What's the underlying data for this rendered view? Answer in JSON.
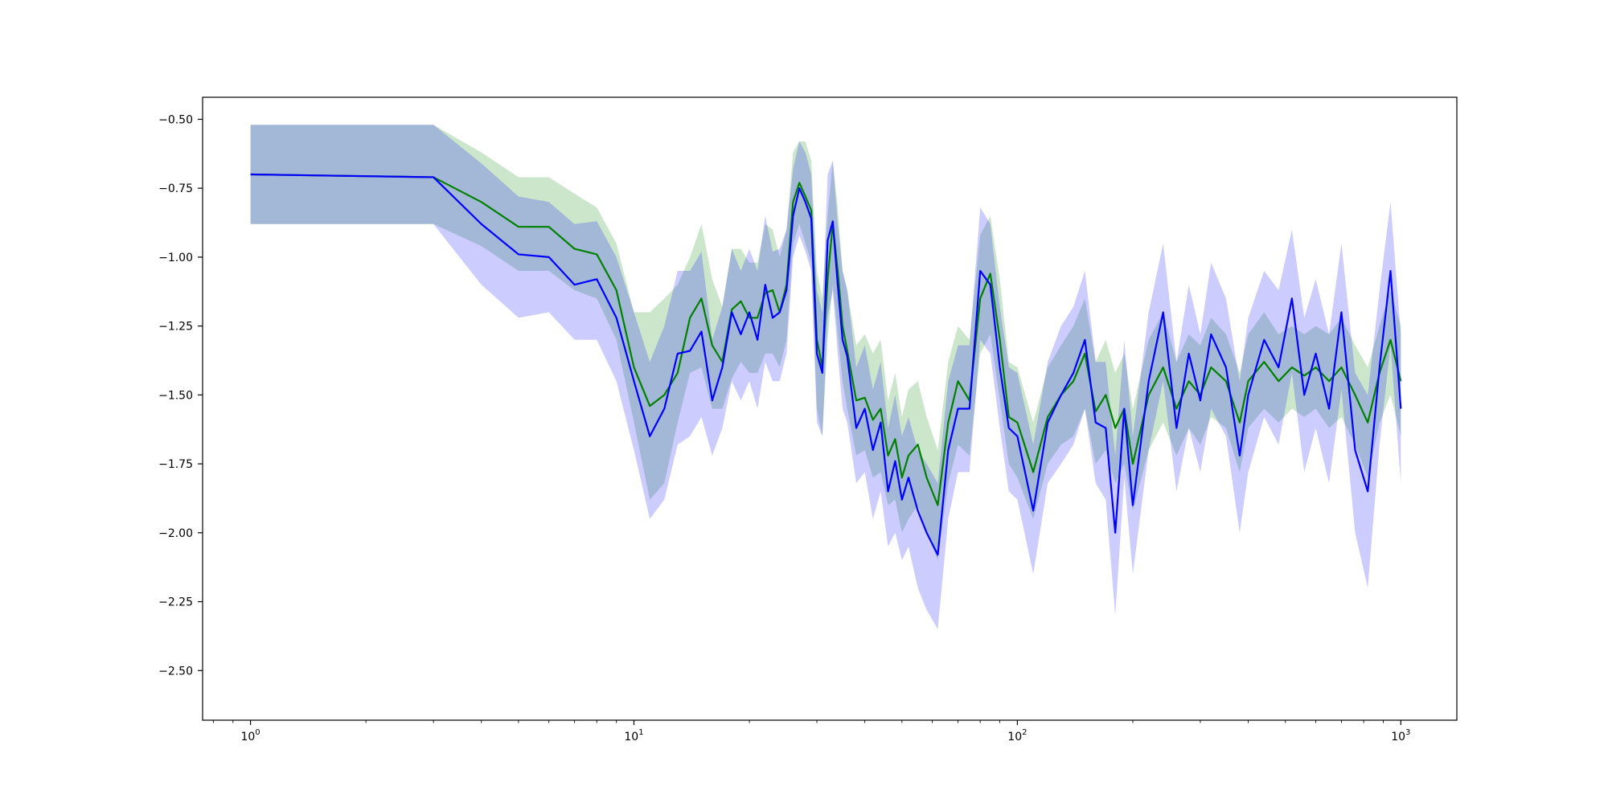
{
  "chart_data": {
    "type": "line",
    "xscale": "log",
    "xlim": [
      0.75,
      1400
    ],
    "ylim": [
      -2.68,
      -0.42
    ],
    "grid": false,
    "legend": "none",
    "xticks": [
      {
        "value": 1,
        "base": "10",
        "exp": "0"
      },
      {
        "value": 10,
        "base": "10",
        "exp": "1"
      },
      {
        "value": 100,
        "base": "10",
        "exp": "2"
      },
      {
        "value": 1000,
        "base": "10",
        "exp": "3"
      }
    ],
    "yticks": [
      {
        "value": -0.5,
        "label": "−0.50"
      },
      {
        "value": -0.75,
        "label": "−0.75"
      },
      {
        "value": -1.0,
        "label": "−1.00"
      },
      {
        "value": -1.25,
        "label": "−1.25"
      },
      {
        "value": -1.5,
        "label": "−1.50"
      },
      {
        "value": -1.75,
        "label": "−1.75"
      },
      {
        "value": -2.0,
        "label": "−2.00"
      },
      {
        "value": -2.25,
        "label": "−2.25"
      },
      {
        "value": -2.5,
        "label": "−2.50"
      }
    ],
    "series": [
      {
        "color": "#008000",
        "band_color": "#008000",
        "band_opacity": 0.2,
        "x": [
          1,
          3,
          4,
          5,
          6,
          7,
          8,
          9,
          10,
          11,
          12,
          13,
          14,
          15,
          16,
          17,
          18,
          19,
          20,
          21,
          22,
          23,
          24,
          25,
          26,
          27,
          28,
          29,
          30,
          31,
          32,
          33,
          34,
          35,
          36,
          38,
          40,
          42,
          44,
          46,
          48,
          50,
          52,
          55,
          58,
          62,
          66,
          70,
          75,
          80,
          85,
          90,
          95,
          100,
          110,
          120,
          130,
          140,
          150,
          160,
          170,
          180,
          190,
          200,
          220,
          240,
          260,
          280,
          300,
          320,
          350,
          380,
          400,
          440,
          480,
          520,
          560,
          600,
          650,
          700,
          760,
          820,
          880,
          940,
          1000
        ],
        "y": [
          -0.7,
          -0.71,
          -0.8,
          -0.89,
          -0.89,
          -0.97,
          -0.99,
          -1.12,
          -1.4,
          -1.54,
          -1.5,
          -1.42,
          -1.22,
          -1.15,
          -1.32,
          -1.38,
          -1.19,
          -1.16,
          -1.22,
          -1.22,
          -1.13,
          -1.12,
          -1.2,
          -1.1,
          -0.8,
          -0.73,
          -0.78,
          -0.83,
          -1.3,
          -1.4,
          -1.08,
          -0.88,
          -1.05,
          -1.25,
          -1.34,
          -1.52,
          -1.51,
          -1.59,
          -1.55,
          -1.72,
          -1.66,
          -1.8,
          -1.72,
          -1.68,
          -1.8,
          -1.9,
          -1.6,
          -1.45,
          -1.52,
          -1.15,
          -1.06,
          -1.3,
          -1.58,
          -1.6,
          -1.78,
          -1.58,
          -1.5,
          -1.45,
          -1.35,
          -1.56,
          -1.5,
          -1.62,
          -1.55,
          -1.75,
          -1.5,
          -1.4,
          -1.55,
          -1.45,
          -1.5,
          -1.4,
          -1.45,
          -1.6,
          -1.45,
          -1.38,
          -1.45,
          -1.4,
          -1.43,
          -1.4,
          -1.45,
          -1.4,
          -1.5,
          -1.6,
          -1.42,
          -1.3,
          -1.45
        ],
        "lower": [
          -0.88,
          -0.88,
          -0.96,
          -1.05,
          -1.05,
          -1.12,
          -1.15,
          -1.3,
          -1.6,
          -1.88,
          -1.82,
          -1.6,
          -1.42,
          -1.4,
          -1.55,
          -1.55,
          -1.44,
          -1.38,
          -1.42,
          -1.42,
          -1.35,
          -1.35,
          -1.4,
          -1.3,
          -0.95,
          -0.88,
          -0.95,
          -1.02,
          -1.55,
          -1.65,
          -1.3,
          -1.1,
          -1.28,
          -1.45,
          -1.55,
          -1.72,
          -1.7,
          -1.8,
          -1.78,
          -1.9,
          -1.88,
          -2.0,
          -1.95,
          -1.9,
          -2.0,
          -2.1,
          -1.82,
          -1.68,
          -1.72,
          -1.35,
          -1.28,
          -1.52,
          -1.75,
          -1.8,
          -1.95,
          -1.75,
          -1.68,
          -1.65,
          -1.55,
          -1.75,
          -1.7,
          -1.82,
          -1.75,
          -1.92,
          -1.7,
          -1.6,
          -1.72,
          -1.62,
          -1.68,
          -1.58,
          -1.62,
          -1.78,
          -1.62,
          -1.55,
          -1.6,
          -1.55,
          -1.58,
          -1.55,
          -1.62,
          -1.58,
          -1.68,
          -1.8,
          -1.6,
          -1.5,
          -1.65
        ],
        "upper": [
          -0.52,
          -0.52,
          -0.62,
          -0.71,
          -0.71,
          -0.77,
          -0.82,
          -0.95,
          -1.2,
          -1.2,
          -1.15,
          -1.1,
          -1.0,
          -0.88,
          -1.08,
          -1.18,
          -0.97,
          -0.97,
          -1.02,
          -1.02,
          -0.88,
          -0.9,
          -1.0,
          -0.9,
          -0.62,
          -0.58,
          -0.58,
          -0.65,
          -1.05,
          -1.15,
          -0.85,
          -0.65,
          -0.82,
          -1.05,
          -1.12,
          -1.32,
          -1.28,
          -1.35,
          -1.3,
          -1.52,
          -1.42,
          -1.58,
          -1.48,
          -1.45,
          -1.58,
          -1.7,
          -1.38,
          -1.25,
          -1.3,
          -0.92,
          -0.85,
          -1.08,
          -1.38,
          -1.4,
          -1.6,
          -1.4,
          -1.32,
          -1.25,
          -1.15,
          -1.38,
          -1.3,
          -1.42,
          -1.35,
          -1.55,
          -1.3,
          -1.2,
          -1.38,
          -1.28,
          -1.32,
          -1.22,
          -1.28,
          -1.42,
          -1.28,
          -1.2,
          -1.28,
          -1.25,
          -1.28,
          -1.25,
          -1.28,
          -1.22,
          -1.32,
          -1.4,
          -1.25,
          -1.12,
          -1.25
        ]
      },
      {
        "color": "#0000ff",
        "band_color": "#0000ff",
        "band_opacity": 0.2,
        "x": [
          1,
          3,
          4,
          5,
          6,
          7,
          8,
          9,
          10,
          11,
          12,
          13,
          14,
          15,
          16,
          17,
          18,
          19,
          20,
          21,
          22,
          23,
          24,
          25,
          26,
          27,
          28,
          29,
          30,
          31,
          32,
          33,
          34,
          35,
          36,
          38,
          40,
          42,
          44,
          46,
          48,
          50,
          52,
          55,
          58,
          62,
          66,
          70,
          75,
          80,
          85,
          90,
          95,
          100,
          110,
          120,
          130,
          140,
          150,
          160,
          170,
          180,
          190,
          200,
          220,
          240,
          260,
          280,
          300,
          320,
          350,
          380,
          400,
          440,
          480,
          520,
          560,
          600,
          650,
          700,
          760,
          820,
          880,
          940,
          1000
        ],
        "y": [
          -0.7,
          -0.71,
          -0.88,
          -0.99,
          -1.0,
          -1.1,
          -1.08,
          -1.22,
          -1.45,
          -1.65,
          -1.55,
          -1.35,
          -1.34,
          -1.27,
          -1.52,
          -1.4,
          -1.2,
          -1.28,
          -1.2,
          -1.3,
          -1.1,
          -1.22,
          -1.2,
          -1.12,
          -0.85,
          -0.75,
          -0.8,
          -0.86,
          -1.35,
          -1.42,
          -0.94,
          -0.87,
          -1.1,
          -1.3,
          -1.36,
          -1.62,
          -1.55,
          -1.7,
          -1.6,
          -1.85,
          -1.74,
          -1.88,
          -1.8,
          -1.92,
          -2.0,
          -2.08,
          -1.7,
          -1.55,
          -1.55,
          -1.05,
          -1.1,
          -1.4,
          -1.62,
          -1.65,
          -1.92,
          -1.6,
          -1.5,
          -1.42,
          -1.3,
          -1.6,
          -1.62,
          -2.0,
          -1.55,
          -1.9,
          -1.45,
          -1.2,
          -1.62,
          -1.35,
          -1.52,
          -1.28,
          -1.4,
          -1.72,
          -1.5,
          -1.3,
          -1.4,
          -1.15,
          -1.5,
          -1.35,
          -1.55,
          -1.2,
          -1.7,
          -1.85,
          -1.4,
          -1.05,
          -1.55
        ],
        "lower": [
          -0.88,
          -0.88,
          -1.1,
          -1.22,
          -1.2,
          -1.3,
          -1.3,
          -1.45,
          -1.7,
          -1.95,
          -1.88,
          -1.68,
          -1.65,
          -1.58,
          -1.72,
          -1.62,
          -1.45,
          -1.52,
          -1.45,
          -1.55,
          -1.38,
          -1.45,
          -1.45,
          -1.35,
          -1.0,
          -0.92,
          -0.98,
          -1.05,
          -1.6,
          -1.65,
          -1.22,
          -1.12,
          -1.35,
          -1.55,
          -1.6,
          -1.82,
          -1.78,
          -1.95,
          -1.85,
          -2.05,
          -2.0,
          -2.1,
          -2.05,
          -2.2,
          -2.28,
          -2.35,
          -1.95,
          -1.78,
          -1.78,
          -1.3,
          -1.35,
          -1.62,
          -1.85,
          -1.88,
          -2.15,
          -1.82,
          -1.75,
          -1.68,
          -1.55,
          -1.82,
          -1.88,
          -2.3,
          -1.8,
          -2.15,
          -1.7,
          -1.45,
          -1.85,
          -1.62,
          -1.78,
          -1.55,
          -1.65,
          -2.0,
          -1.78,
          -1.58,
          -1.68,
          -1.42,
          -1.78,
          -1.62,
          -1.82,
          -1.48,
          -2.0,
          -2.2,
          -1.68,
          -1.32,
          -1.82
        ],
        "upper": [
          -0.52,
          -0.52,
          -0.66,
          -0.78,
          -0.8,
          -0.88,
          -0.87,
          -1.0,
          -1.2,
          -1.38,
          -1.25,
          -1.05,
          -1.05,
          -0.98,
          -1.3,
          -1.18,
          -0.97,
          -1.05,
          -0.97,
          -1.05,
          -0.85,
          -0.98,
          -0.97,
          -0.9,
          -0.68,
          -0.58,
          -0.62,
          -0.7,
          -1.12,
          -1.2,
          -0.7,
          -0.65,
          -0.88,
          -1.05,
          -1.12,
          -1.4,
          -1.32,
          -1.48,
          -1.38,
          -1.62,
          -1.5,
          -1.65,
          -1.58,
          -1.7,
          -1.75,
          -1.82,
          -1.45,
          -1.32,
          -1.32,
          -0.82,
          -0.88,
          -1.18,
          -1.4,
          -1.42,
          -1.68,
          -1.38,
          -1.25,
          -1.18,
          -1.05,
          -1.38,
          -1.38,
          -1.72,
          -1.3,
          -1.65,
          -1.2,
          -0.95,
          -1.38,
          -1.1,
          -1.28,
          -1.02,
          -1.15,
          -1.45,
          -1.22,
          -1.05,
          -1.12,
          -0.9,
          -1.22,
          -1.08,
          -1.28,
          -0.95,
          -1.42,
          -1.5,
          -1.12,
          -0.8,
          -1.28
        ]
      }
    ]
  }
}
